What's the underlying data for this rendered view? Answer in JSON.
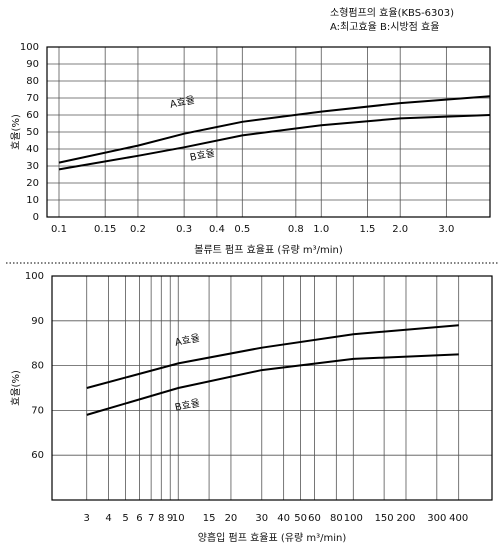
{
  "header": {
    "title": "소형펌프의 효율(KBS-6303)",
    "subtitle": "A:최고효율 B:시방점 효율"
  },
  "chart_data": [
    {
      "type": "line",
      "x_label": "볼류트 펌프 효율표 (유량 m³/min)",
      "y_label": "효율(%)",
      "log_x": true,
      "grid": true,
      "annotations": [
        "A효율",
        "B효율"
      ],
      "xlim": [
        0.09,
        4.4
      ],
      "xticks": [
        0.1,
        0.15,
        0.2,
        0.3,
        0.4,
        0.5,
        0.8,
        {
          "value": 1,
          "label": "1.0"
        },
        1.5,
        {
          "value": 2,
          "label": "2.0"
        },
        {
          "value": 3,
          "label": "3.0"
        }
      ],
      "ylim": [
        0,
        100
      ],
      "yticks": [
        0,
        10,
        20,
        30,
        40,
        50,
        60,
        70,
        80,
        90,
        100
      ],
      "x": [
        0.1,
        0.2,
        0.3,
        0.5,
        1,
        2,
        4.4
      ],
      "series": [
        {
          "name": "A",
          "color": "#000000",
          "values": [
            32,
            42,
            49,
            56,
            62,
            67,
            71
          ]
        },
        {
          "name": "B",
          "color": "#000000",
          "values": [
            28,
            36,
            41,
            48,
            54,
            58,
            60
          ]
        }
      ]
    },
    {
      "type": "line",
      "x_label": "양흡입 펌프 효율표 (유량 m³/min)",
      "y_label": "효율(%)",
      "log_x": true,
      "grid": true,
      "annotations": [
        "A효율",
        "B효율"
      ],
      "xlim": [
        1.9,
        620
      ],
      "xticks": [
        3,
        4,
        5,
        6,
        7,
        8,
        9,
        10,
        15,
        20,
        30,
        40,
        50,
        60,
        80,
        100,
        150,
        200,
        300,
        400
      ],
      "ylim": [
        50,
        100
      ],
      "yticks": [
        60,
        70,
        80,
        90,
        100
      ],
      "x": [
        3,
        10,
        30,
        100,
        400
      ],
      "series": [
        {
          "name": "A",
          "color": "#000000",
          "values": [
            75,
            80.5,
            84,
            87,
            89
          ]
        },
        {
          "name": "B",
          "color": "#000000",
          "values": [
            69,
            75,
            79,
            81.5,
            82.5
          ]
        }
      ]
    }
  ]
}
